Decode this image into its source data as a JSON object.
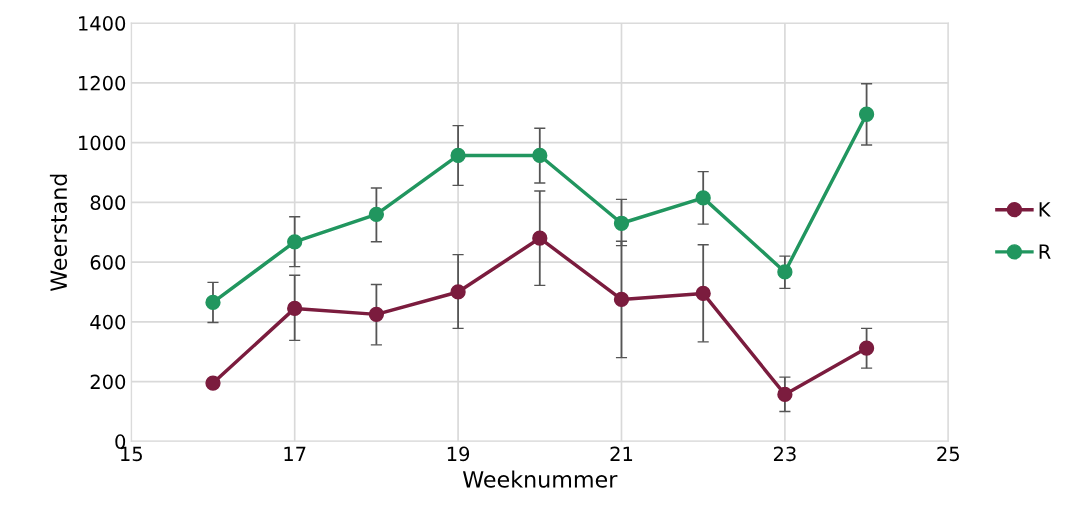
{
  "chart_data": {
    "type": "line",
    "xlabel": "Weeknummer",
    "ylabel": "Weerstand",
    "x": [
      16,
      17,
      18,
      19,
      20,
      21,
      22,
      23,
      24
    ],
    "series": [
      {
        "name": "K",
        "color": "#7b1c3e",
        "values": [
          195,
          445,
          425,
          500,
          680,
          475,
          495,
          157,
          312
        ],
        "errors": [
          null,
          [
            338,
            556
          ],
          [
            323,
            525
          ],
          [
            378,
            625
          ],
          [
            522,
            838
          ],
          [
            280,
            670
          ],
          [
            333,
            658
          ],
          [
            100,
            215
          ],
          [
            245,
            378
          ]
        ]
      },
      {
        "name": "R",
        "color": "#21965f",
        "values": [
          465,
          668,
          760,
          957,
          957,
          730,
          815,
          567,
          1095
        ],
        "errors": [
          [
            398,
            532
          ],
          [
            585,
            752
          ],
          [
            668,
            848
          ],
          [
            857,
            1057
          ],
          [
            865,
            1048
          ],
          [
            655,
            810
          ],
          [
            727,
            903
          ],
          [
            512,
            620
          ],
          [
            992,
            1197
          ]
        ]
      }
    ],
    "xlim": [
      15,
      25
    ],
    "xticks": [
      15,
      17,
      19,
      21,
      23,
      25
    ],
    "ylim": [
      0,
      1400
    ],
    "yticks": [
      0,
      200,
      400,
      600,
      800,
      1000,
      1200,
      1400
    ],
    "grid": true,
    "legend": "right",
    "marker": "circle",
    "line_style": "solid"
  }
}
